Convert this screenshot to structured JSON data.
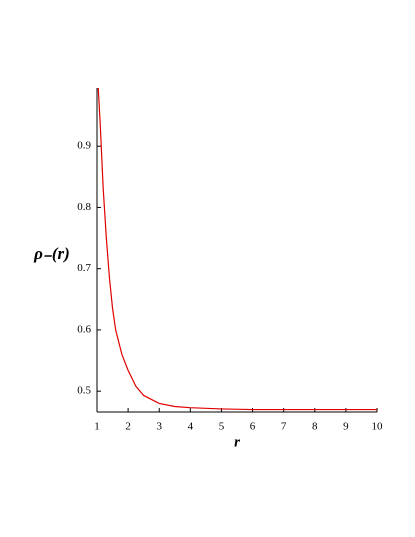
{
  "chart_data": {
    "type": "line",
    "xlabel": "r",
    "ylabel": "ρ₋(r)",
    "x": [
      1.04,
      1.1,
      1.2,
      1.3,
      1.4,
      1.5,
      1.6,
      1.8,
      2,
      2.25,
      2.5,
      3,
      3.5,
      4,
      5,
      6,
      7,
      8,
      9,
      10
    ],
    "series": [
      {
        "color": "#e00000",
        "values": [
          0.995,
          0.94,
          0.83,
          0.75,
          0.685,
          0.635,
          0.6,
          0.56,
          0.534,
          0.508,
          0.493,
          0.48,
          0.475,
          0.473,
          0.471,
          0.47,
          0.47,
          0.47,
          0.47,
          0.47
        ]
      }
    ],
    "xlim": [
      1,
      10
    ],
    "ylim": [
      0.466,
      0.995
    ],
    "xticks": [
      1,
      2,
      3,
      4,
      5,
      6,
      7,
      8,
      9,
      10
    ],
    "yticks": [
      0.5,
      0.6,
      0.7,
      0.8,
      0.9
    ]
  }
}
